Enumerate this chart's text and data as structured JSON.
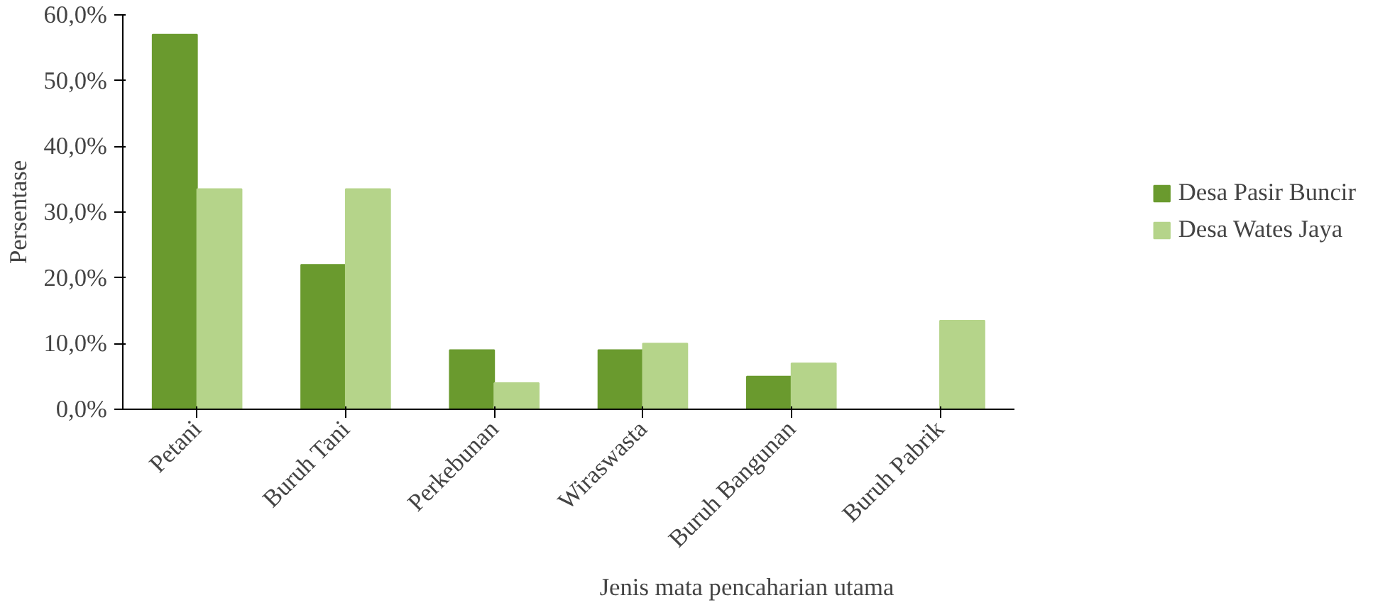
{
  "chart_data": {
    "type": "bar",
    "xlabel": "Jenis mata pencaharian utama",
    "ylabel": "Persentase",
    "categories": [
      "Petani",
      "Buruh Tani",
      "Perkebunan",
      "Wiraswasta",
      "Buruh Bangunan",
      "Buruh Pabrik"
    ],
    "series": [
      {
        "name": "Desa Pasir Buncir",
        "color": "#6a9a2e",
        "values": [
          57,
          22,
          9,
          9,
          5,
          0
        ]
      },
      {
        "name": "Desa Wates Jaya",
        "color": "#b5d48a",
        "values": [
          33.5,
          33.5,
          4,
          10,
          7,
          13.5
        ]
      }
    ],
    "ylim": [
      0,
      60
    ],
    "yticks": [
      {
        "value": 0,
        "label": "0,0%"
      },
      {
        "value": 10,
        "label": "10,0%"
      },
      {
        "value": 20,
        "label": "20,0%"
      },
      {
        "value": 30,
        "label": "30,0%"
      },
      {
        "value": 40,
        "label": "40,0%"
      },
      {
        "value": 50,
        "label": "50,0%"
      },
      {
        "value": 60,
        "label": "60,0%"
      }
    ],
    "legend": "right",
    "grid": false
  }
}
